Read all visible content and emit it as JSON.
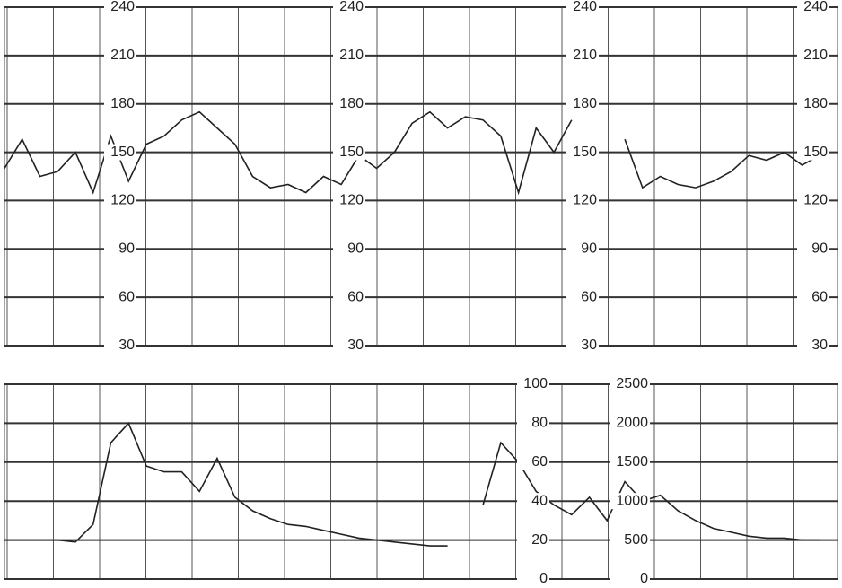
{
  "chart_data": [
    {
      "type": "line",
      "color": "#222222",
      "values": [
        140,
        158,
        135,
        138,
        150,
        125,
        160,
        132,
        155,
        160,
        170,
        175,
        165,
        155,
        135,
        128,
        130,
        125,
        135,
        130,
        148,
        140,
        150,
        168,
        175,
        165,
        172,
        170,
        160,
        125,
        165,
        150,
        170,
        null,
        null,
        158,
        128,
        135,
        130,
        128,
        132,
        138,
        148,
        145,
        150,
        142,
        148
      ],
      "ylim": [
        30,
        240
      ],
      "yticks": [
        30,
        60,
        90,
        120,
        150,
        180,
        210,
        240
      ],
      "grid": true
    },
    {
      "type": "line",
      "color": "#222222",
      "values": [
        20,
        20,
        20,
        20,
        19,
        28,
        70,
        80,
        58,
        55,
        55,
        45,
        62,
        42,
        35,
        31,
        28,
        27,
        25,
        23,
        21,
        20,
        19,
        18,
        17,
        17,
        null,
        38,
        70,
        60,
        45,
        38,
        33,
        42,
        30,
        50,
        40,
        43,
        35,
        30,
        26,
        24,
        22,
        21,
        21,
        20,
        20
      ],
      "ylim": [
        0,
        100
      ],
      "yticks": [
        0,
        20,
        40,
        60,
        80,
        100
      ],
      "y2lim": [
        0,
        2500
      ],
      "y2ticks": [
        0,
        500,
        1000,
        1500,
        2000,
        2500
      ],
      "grid": true
    }
  ]
}
